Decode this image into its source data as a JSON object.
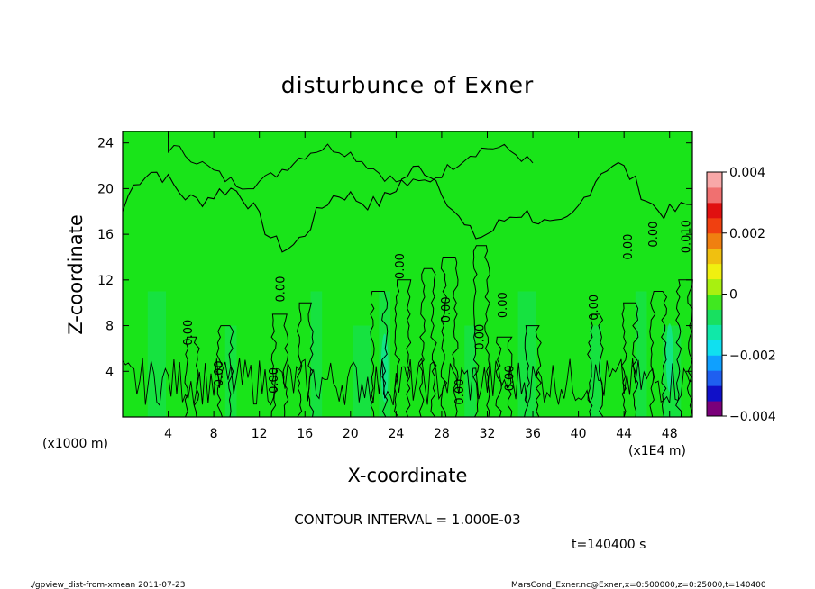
{
  "chart_data": {
    "type": "heatmap",
    "title": "disturbunce of Exner",
    "xlabel": "X-coordinate",
    "ylabel": "Z-coordinate",
    "x_unit_left": "(x1000 m)",
    "x_unit_right": "(x1E4 m)",
    "xlim": [
      0,
      50
    ],
    "ylim": [
      0,
      25
    ],
    "xticks": [
      4,
      8,
      12,
      16,
      20,
      24,
      28,
      32,
      36,
      40,
      44,
      48
    ],
    "yticks": [
      4,
      8,
      12,
      16,
      20,
      24
    ],
    "colorbar": {
      "range": [
        -0.004,
        0.004
      ],
      "tick_values": [
        0.004,
        0.002,
        0,
        -0.002,
        -0.004
      ],
      "tick_labels": [
        "0.004",
        "0.002",
        "0",
        "−0.002",
        "−0.004"
      ],
      "colors": [
        "#7a007a",
        "#1010c8",
        "#1f5ff0",
        "#0fa0ff",
        "#10e0f0",
        "#10e8a8",
        "#18e060",
        "#40e820",
        "#a8f010",
        "#f0f010",
        "#f0c010",
        "#f08010",
        "#f04010",
        "#e01010",
        "#f07070",
        "#f8a8a8"
      ]
    },
    "contour_labels": [
      {
        "x": 6.1,
        "z": 7.4,
        "text": "0.00"
      },
      {
        "x": 8.8,
        "z": 3.8,
        "text": "0.00"
      },
      {
        "x": 14.2,
        "z": 11.2,
        "text": "0.00"
      },
      {
        "x": 13.6,
        "z": 3.2,
        "text": "0.00"
      },
      {
        "x": 24.7,
        "z": 13.2,
        "text": "0.00"
      },
      {
        "x": 28.7,
        "z": 9.4,
        "text": "0.00"
      },
      {
        "x": 29.9,
        "z": 2.2,
        "text": "0.00"
      },
      {
        "x": 31.7,
        "z": 7.0,
        "text": "0.00"
      },
      {
        "x": 33.7,
        "z": 9.8,
        "text": "0.00"
      },
      {
        "x": 34.3,
        "z": 3.4,
        "text": "0.00"
      },
      {
        "x": 41.7,
        "z": 9.6,
        "text": "0.00"
      },
      {
        "x": 44.7,
        "z": 14.9,
        "text": "0.00"
      },
      {
        "x": 46.9,
        "z": 16.0,
        "text": "0.00"
      },
      {
        "x": 49.8,
        "z": 15.8,
        "text": "0.010"
      }
    ],
    "negative_regions": [
      {
        "x": 23.0,
        "z": 4.3
      },
      {
        "x": 48.0,
        "z": 5.2
      }
    ],
    "annotation": "CONTOUR INTERVAL = 1.000E-03",
    "time_label": "t=140400 s"
  },
  "footer": {
    "left": "./gpview_dist-from-xmean  2011-07-23",
    "right": "MarsCond_Exner.nc@Exner,x=0:500000,z=0:25000,t=140400"
  },
  "colors": {
    "field": "#19e419",
    "field_low": "#13e070",
    "field_cyan": "#10e8c0"
  }
}
